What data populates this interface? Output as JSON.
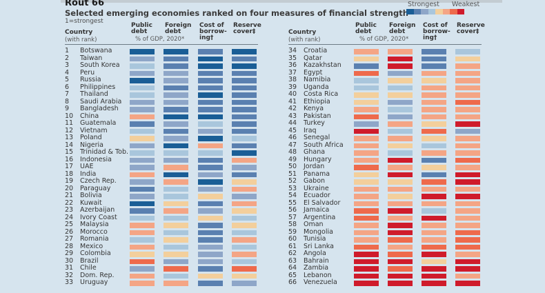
{
  "header": {
    "title": "Rout 66",
    "subtitle": "Selected emerging economies ranked on four measures of financial strength",
    "note": "1=strongest"
  },
  "legend": {
    "strongest_label": "Strongest",
    "weakest_label": "Weakest",
    "colors": [
      "#1a5e96",
      "#5a80b0",
      "#8ea6c8",
      "#a9c6dc",
      "#f3cf9c",
      "#f4a585",
      "#ee6a4c",
      "#cf1b2b"
    ]
  },
  "columns": {
    "country": "Country",
    "country_sub": "(with rank)",
    "public_debt": [
      "Public",
      "debt"
    ],
    "foreign_debt": [
      "Foreign",
      "debt"
    ],
    "gdp_note": "% of GDP, 2020*",
    "cost_of_borrowing": [
      "Cost of",
      "borrow-",
      "ing†"
    ],
    "reserve_cover": [
      "Reserve",
      "cover‡"
    ]
  },
  "chart_data": {
    "type": "heatmap",
    "title": "Rout 66",
    "subtitle": "Selected emerging economies ranked on four measures of financial strength",
    "note": "1=strongest",
    "scale": "ordinal color level 1 (strongest, dark blue) to 8 (weakest, dark red)",
    "measures": [
      "Public debt (% of GDP, 2020)",
      "Foreign debt (% of GDP, 2020)",
      "Cost of borrowing",
      "Reserve cover"
    ],
    "rows": [
      {
        "rank": 1,
        "country": "Botswana",
        "levels": [
          1,
          1,
          2,
          1
        ]
      },
      {
        "rank": 2,
        "country": "Taiwan",
        "levels": [
          3,
          2,
          1,
          2
        ]
      },
      {
        "rank": 3,
        "country": "South Korea",
        "levels": [
          4,
          2,
          1,
          1
        ]
      },
      {
        "rank": 4,
        "country": "Peru",
        "levels": [
          3,
          3,
          2,
          2
        ]
      },
      {
        "rank": 5,
        "country": "Russia",
        "levels": [
          1,
          3,
          2,
          2
        ]
      },
      {
        "rank": 6,
        "country": "Philippines",
        "levels": [
          4,
          2,
          2,
          2
        ]
      },
      {
        "rank": 7,
        "country": "Thailand",
        "levels": [
          4,
          3,
          1,
          2
        ]
      },
      {
        "rank": 8,
        "country": "Saudi Arabia",
        "levels": [
          3,
          3,
          2,
          2
        ]
      },
      {
        "rank": 9,
        "country": "Bangladesh",
        "levels": [
          3,
          2,
          2,
          2
        ]
      },
      {
        "rank": 10,
        "country": "China",
        "levels": [
          6,
          1,
          1,
          2
        ]
      },
      {
        "rank": 11,
        "country": "Guatemala",
        "levels": [
          2,
          3,
          4,
          2
        ]
      },
      {
        "rank": 12,
        "country": "Vietnam",
        "levels": [
          4,
          2,
          3,
          2
        ]
      },
      {
        "rank": 13,
        "country": "Poland",
        "levels": [
          5,
          3,
          1,
          4
        ]
      },
      {
        "rank": 14,
        "country": "Nigeria",
        "levels": [
          3,
          1,
          6,
          2
        ]
      },
      {
        "rank": 15,
        "country": "Trinidad & Tob.",
        "levels": [
          4,
          4,
          4,
          1
        ]
      },
      {
        "rank": 16,
        "country": "Indonesia",
        "levels": [
          3,
          3,
          2,
          6
        ]
      },
      {
        "rank": 17,
        "country": "UAE",
        "levels": [
          3,
          6,
          2,
          3
        ]
      },
      {
        "rank": 18,
        "country": "India",
        "levels": [
          6,
          1,
          3,
          2
        ]
      },
      {
        "rank": 19,
        "country": "Czech Rep.",
        "levels": [
          3,
          6,
          1,
          5
        ]
      },
      {
        "rank": 20,
        "country": "Paraguay",
        "levels": [
          2,
          4,
          3,
          6
        ]
      },
      {
        "rank": 21,
        "country": "Bolivia",
        "levels": [
          3,
          4,
          5,
          3
        ]
      },
      {
        "rank": 22,
        "country": "Kuwait",
        "levels": [
          1,
          5,
          2,
          6
        ]
      },
      {
        "rank": 23,
        "country": "Azerbaijan",
        "levels": [
          2,
          6,
          3,
          5
        ]
      },
      {
        "rank": 24,
        "country": "Ivory Coast",
        "levels": [
          4,
          4,
          5,
          4
        ]
      },
      {
        "rank": 25,
        "country": "Malaysia",
        "levels": [
          6,
          5,
          2,
          5
        ]
      },
      {
        "rank": 26,
        "country": "Morocco",
        "levels": [
          6,
          4,
          2,
          4
        ]
      },
      {
        "rank": 27,
        "country": "Romania",
        "levels": [
          4,
          5,
          2,
          6
        ]
      },
      {
        "rank": 28,
        "country": "Mexico",
        "levels": [
          6,
          4,
          3,
          4
        ]
      },
      {
        "rank": 29,
        "country": "Colombia",
        "levels": [
          5,
          5,
          3,
          6
        ]
      },
      {
        "rank": 30,
        "country": "Brazil",
        "levels": [
          7,
          3,
          3,
          4
        ]
      },
      {
        "rank": 31,
        "country": "Chile",
        "levels": [
          3,
          7,
          2,
          7
        ]
      },
      {
        "rank": 32,
        "country": "Dom. Rep.",
        "levels": [
          6,
          4,
          5,
          5
        ]
      },
      {
        "rank": 33,
        "country": "Uruguay",
        "levels": [
          6,
          6,
          2,
          3
        ]
      },
      {
        "rank": 34,
        "country": "Croatia",
        "levels": [
          6,
          6,
          2,
          4
        ]
      },
      {
        "rank": 35,
        "country": "Qatar",
        "levels": [
          5,
          8,
          2,
          5
        ]
      },
      {
        "rank": 36,
        "country": "Kazakhstan",
        "levels": [
          2,
          8,
          2,
          6
        ]
      },
      {
        "rank": 37,
        "country": "Egypt",
        "levels": [
          7,
          3,
          6,
          6
        ]
      },
      {
        "rank": 38,
        "country": "Namibia",
        "levels": [
          4,
          5,
          5,
          6
        ]
      },
      {
        "rank": 39,
        "country": "Uganda",
        "levels": [
          4,
          4,
          6,
          6
        ]
      },
      {
        "rank": 40,
        "country": "Costa Rica",
        "levels": [
          5,
          5,
          6,
          6
        ]
      },
      {
        "rank": 41,
        "country": "Ethiopia",
        "levels": [
          5,
          3,
          6,
          7
        ]
      },
      {
        "rank": 42,
        "country": "Kenya",
        "levels": [
          6,
          4,
          6,
          6
        ]
      },
      {
        "rank": 43,
        "country": "Pakistan",
        "levels": [
          7,
          3,
          6,
          6
        ]
      },
      {
        "rank": 44,
        "country": "Turkey",
        "levels": [
          3,
          6,
          5,
          8
        ]
      },
      {
        "rank": 45,
        "country": "Iraq",
        "levels": [
          8,
          4,
          7,
          3
        ]
      },
      {
        "rank": 46,
        "country": "Senegal",
        "levels": [
          6,
          6,
          5,
          6
        ]
      },
      {
        "rank": 47,
        "country": "South Africa",
        "levels": [
          6,
          5,
          4,
          6
        ]
      },
      {
        "rank": 48,
        "country": "Ghana",
        "levels": [
          6,
          4,
          6,
          6
        ]
      },
      {
        "rank": 49,
        "country": "Hungary",
        "levels": [
          6,
          8,
          2,
          7
        ]
      },
      {
        "rank": 50,
        "country": "Jordan",
        "levels": [
          7,
          6,
          5,
          6
        ]
      },
      {
        "rank": 51,
        "country": "Panama",
        "levels": [
          5,
          8,
          2,
          8
        ]
      },
      {
        "rank": 52,
        "country": "Gabon",
        "levels": [
          5,
          5,
          7,
          8
        ]
      },
      {
        "rank": 53,
        "country": "Ukraine",
        "levels": [
          6,
          6,
          6,
          6
        ]
      },
      {
        "rank": 54,
        "country": "Ecuador",
        "levels": [
          6,
          5,
          8,
          8
        ]
      },
      {
        "rank": 55,
        "country": "El Salvador",
        "levels": [
          6,
          6,
          6,
          6
        ]
      },
      {
        "rank": 56,
        "country": "Jamaica",
        "levels": [
          7,
          8,
          4,
          6
        ]
      },
      {
        "rank": 57,
        "country": "Argentina",
        "levels": [
          7,
          6,
          8,
          6
        ]
      },
      {
        "rank": 58,
        "country": "Oman",
        "levels": [
          6,
          8,
          6,
          6
        ]
      },
      {
        "rank": 59,
        "country": "Mongolia",
        "levels": [
          6,
          8,
          6,
          7
        ]
      },
      {
        "rank": 60,
        "country": "Tunisia",
        "levels": [
          6,
          7,
          6,
          7
        ]
      },
      {
        "rank": 61,
        "country": "Sri Lanka",
        "levels": [
          7,
          6,
          7,
          7
        ]
      },
      {
        "rank": 62,
        "country": "Angola",
        "levels": [
          8,
          7,
          8,
          6
        ]
      },
      {
        "rank": 63,
        "country": "Bahrain",
        "levels": [
          8,
          8,
          5,
          8
        ]
      },
      {
        "rank": 64,
        "country": "Zambia",
        "levels": [
          8,
          7,
          8,
          8
        ]
      },
      {
        "rank": 65,
        "country": "Lebanon",
        "levels": [
          8,
          8,
          8,
          6
        ]
      },
      {
        "rank": 66,
        "country": "Venezuela",
        "levels": [
          8,
          8,
          8,
          8
        ]
      }
    ]
  }
}
